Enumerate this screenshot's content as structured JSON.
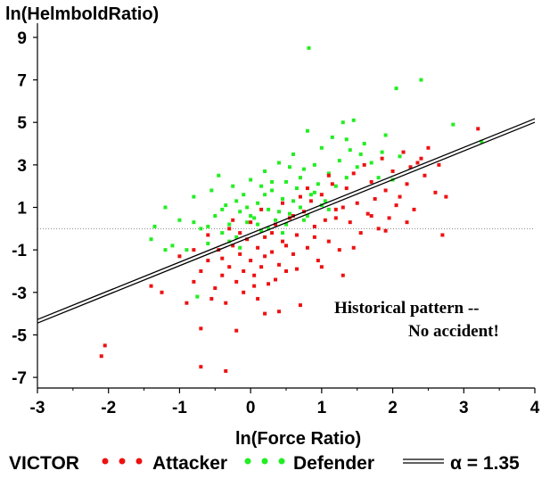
{
  "chart_data": {
    "type": "scatter",
    "title": "",
    "xlabel": "ln(Force Ratio)",
    "ylabel": "ln(HelmboldRatio)",
    "xlim": [
      -3,
      4
    ],
    "ylim": [
      -7.5,
      9.5
    ],
    "x_ticks": [
      "-3",
      "-2",
      "-1",
      "0",
      "1",
      "2",
      "3",
      "4"
    ],
    "y_ticks": [
      "9",
      "7",
      "5",
      "3",
      "1",
      "-1",
      "-3",
      "-5",
      "-7"
    ],
    "reference_line_y": 0,
    "annotation": [
      "Historical pattern --",
      "No accident!"
    ],
    "legend": {
      "title": "VICTOR",
      "attacker_label": "Attacker",
      "defender_label": "Defender",
      "line_label": "α = 1.35",
      "position": "bottom"
    },
    "colors": {
      "attacker": "#ee1111",
      "defender": "#22ee22",
      "line": "#000000",
      "reference": "#888888"
    },
    "fit_line": {
      "slope": 1.35,
      "intercept": -0.31
    },
    "series": [
      {
        "name": "Attacker",
        "points": [
          [
            -2.1,
            -6.0
          ],
          [
            -2.05,
            -5.5
          ],
          [
            -1.4,
            -2.7
          ],
          [
            -1.25,
            -3.0
          ],
          [
            -0.7,
            -6.5
          ],
          [
            -0.35,
            -6.7
          ],
          [
            -0.7,
            -4.7
          ],
          [
            -0.9,
            -3.5
          ],
          [
            -0.8,
            -2.5
          ],
          [
            -0.7,
            -2.0
          ],
          [
            -0.6,
            -1.5
          ],
          [
            -0.55,
            -3.3
          ],
          [
            -0.5,
            -2.8
          ],
          [
            -0.45,
            -1.0
          ],
          [
            -0.4,
            -2.2
          ],
          [
            -0.35,
            -3.5
          ],
          [
            -0.3,
            -1.8
          ],
          [
            -0.25,
            -0.8
          ],
          [
            -0.2,
            -2.5
          ],
          [
            -0.15,
            -1.2
          ],
          [
            -0.1,
            -3.0
          ],
          [
            -0.05,
            -0.5
          ],
          [
            0.0,
            -1.5
          ],
          [
            0.05,
            -2.2
          ],
          [
            0.1,
            -0.9
          ],
          [
            0.1,
            -3.3
          ],
          [
            0.15,
            -1.8
          ],
          [
            0.2,
            -0.4
          ],
          [
            0.25,
            -2.6
          ],
          [
            0.3,
            -1.1
          ],
          [
            0.35,
            0.2
          ],
          [
            0.4,
            -1.7
          ],
          [
            0.45,
            -0.6
          ],
          [
            0.5,
            -2.0
          ],
          [
            0.55,
            0.5
          ],
          [
            0.6,
            -1.2
          ],
          [
            0.65,
            -0.3
          ],
          [
            0.7,
            -3.6
          ],
          [
            0.75,
            0.8
          ],
          [
            0.8,
            -0.9
          ],
          [
            0.85,
            1.3
          ],
          [
            0.9,
            0.1
          ],
          [
            0.95,
            -1.5
          ],
          [
            1.0,
            1.6
          ],
          [
            1.05,
            0.4
          ],
          [
            1.1,
            -0.6
          ],
          [
            1.15,
            2.1
          ],
          [
            1.2,
            0.9
          ],
          [
            1.25,
            -1.0
          ],
          [
            1.3,
            -2.2
          ],
          [
            1.35,
            1.9
          ],
          [
            1.4,
            0.3
          ],
          [
            1.45,
            2.6
          ],
          [
            1.5,
            1.2
          ],
          [
            1.55,
            -0.2
          ],
          [
            1.6,
            3.0
          ],
          [
            1.65,
            0.7
          ],
          [
            1.7,
            2.2
          ],
          [
            1.75,
            1.4
          ],
          [
            1.8,
            0.0
          ],
          [
            1.85,
            3.3
          ],
          [
            1.9,
            1.8
          ],
          [
            1.95,
            0.5
          ],
          [
            2.0,
            2.7
          ],
          [
            2.1,
            1.5
          ],
          [
            2.15,
            3.6
          ],
          [
            2.2,
            2.1
          ],
          [
            2.3,
            0.9
          ],
          [
            2.35,
            3.1
          ],
          [
            2.45,
            2.5
          ],
          [
            2.5,
            3.8
          ],
          [
            2.6,
            1.7
          ],
          [
            2.65,
            3.0
          ],
          [
            2.7,
            -0.3
          ],
          [
            2.75,
            1.5
          ],
          [
            3.2,
            4.7
          ],
          [
            0.2,
            -4.0
          ],
          [
            -0.2,
            -4.8
          ],
          [
            0.4,
            -3.9
          ],
          [
            -0.6,
            -0.3
          ],
          [
            -0.3,
            0.0
          ],
          [
            0.0,
            0.3
          ],
          [
            0.3,
            -0.2
          ],
          [
            0.6,
            0.6
          ],
          [
            0.9,
            -0.4
          ],
          [
            1.2,
            0.5
          ],
          [
            1.0,
            -1.8
          ],
          [
            0.5,
            -0.8
          ],
          [
            0.2,
            -1.3
          ],
          [
            -0.1,
            -2.0
          ],
          [
            -0.4,
            -1.4
          ],
          [
            -0.8,
            -1.0
          ],
          [
            -1.0,
            -1.3
          ],
          [
            0.8,
            1.9
          ],
          [
            1.3,
            1.0
          ],
          [
            1.7,
            0.6
          ],
          [
            2.05,
            1.1
          ],
          [
            2.25,
            2.9
          ],
          [
            2.4,
            3.3
          ],
          [
            0.15,
            0.9
          ],
          [
            0.45,
            1.2
          ],
          [
            0.7,
            1.5
          ],
          [
            -0.25,
            0.4
          ],
          [
            1.1,
            2.5
          ],
          [
            0.05,
            -2.7
          ],
          [
            0.35,
            -2.4
          ],
          [
            -0.15,
            -0.2
          ],
          [
            0.65,
            -1.9
          ],
          [
            1.45,
            -0.9
          ],
          [
            1.9,
            -0.1
          ],
          [
            2.2,
            0.3
          ]
        ]
      },
      {
        "name": "Defender",
        "points": [
          [
            -1.4,
            -0.5
          ],
          [
            -1.35,
            0.1
          ],
          [
            -1.2,
            1.0
          ],
          [
            -1.1,
            -0.8
          ],
          [
            -1.0,
            0.4
          ],
          [
            -0.9,
            -1.0
          ],
          [
            -0.8,
            1.5
          ],
          [
            -0.75,
            -3.2
          ],
          [
            -0.7,
            0.0
          ],
          [
            -0.6,
            -0.7
          ],
          [
            -0.55,
            1.8
          ],
          [
            -0.5,
            0.6
          ],
          [
            -0.45,
            2.5
          ],
          [
            -0.4,
            -0.2
          ],
          [
            -0.35,
            1.1
          ],
          [
            -0.3,
            0.2
          ],
          [
            -0.25,
            2.0
          ],
          [
            -0.2,
            -0.4
          ],
          [
            -0.15,
            0.8
          ],
          [
            -0.1,
            1.6
          ],
          [
            -0.05,
            0.3
          ],
          [
            0.0,
            2.3
          ],
          [
            0.05,
            0.5
          ],
          [
            0.1,
            1.2
          ],
          [
            0.15,
            -0.1
          ],
          [
            0.2,
            2.7
          ],
          [
            0.25,
            0.9
          ],
          [
            0.3,
            1.8
          ],
          [
            0.35,
            0.4
          ],
          [
            0.4,
            3.1
          ],
          [
            0.45,
            1.4
          ],
          [
            0.5,
            2.2
          ],
          [
            0.55,
            0.7
          ],
          [
            0.6,
            3.5
          ],
          [
            0.65,
            1.9
          ],
          [
            0.7,
            1.0
          ],
          [
            0.75,
            2.8
          ],
          [
            0.8,
            4.6
          ],
          [
            0.82,
            8.5
          ],
          [
            0.85,
            1.6
          ],
          [
            0.9,
            3.0
          ],
          [
            0.95,
            2.1
          ],
          [
            1.0,
            3.8
          ],
          [
            1.05,
            1.3
          ],
          [
            1.1,
            2.6
          ],
          [
            1.15,
            4.3
          ],
          [
            1.2,
            2.0
          ],
          [
            1.25,
            3.2
          ],
          [
            1.3,
            5.0
          ],
          [
            1.35,
            2.4
          ],
          [
            1.4,
            3.7
          ],
          [
            1.45,
            5.1
          ],
          [
            1.5,
            2.9
          ],
          [
            1.6,
            4.0
          ],
          [
            1.7,
            3.1
          ],
          [
            1.8,
            2.4
          ],
          [
            1.9,
            4.4
          ],
          [
            2.0,
            2.3
          ],
          [
            2.05,
            6.6
          ],
          [
            2.1,
            3.4
          ],
          [
            2.4,
            7.0
          ],
          [
            2.85,
            4.9
          ],
          [
            3.25,
            4.1
          ],
          [
            -0.6,
            0.1
          ],
          [
            -0.4,
            0.9
          ],
          [
            -0.2,
            1.3
          ],
          [
            0.0,
            0.6
          ],
          [
            0.2,
            1.6
          ],
          [
            0.4,
            0.8
          ],
          [
            0.6,
            1.3
          ],
          [
            0.8,
            0.6
          ],
          [
            1.0,
            1.1
          ],
          [
            -0.05,
            1.0
          ],
          [
            0.1,
            0.2
          ],
          [
            0.3,
            2.2
          ],
          [
            0.5,
            0.2
          ],
          [
            0.7,
            2.4
          ],
          [
            0.9,
            1.7
          ],
          [
            1.1,
            0.9
          ],
          [
            0.15,
            2.0
          ],
          [
            -0.3,
            -0.6
          ],
          [
            -0.8,
            0.3
          ],
          [
            -1.2,
            -1.0
          ],
          [
            0.55,
            2.9
          ],
          [
            1.35,
            4.2
          ],
          [
            0.25,
            0.0
          ],
          [
            -0.15,
            -0.9
          ],
          [
            0.45,
            -0.2
          ],
          [
            0.75,
            0.4
          ],
          [
            1.55,
            3.5
          ],
          [
            1.85,
            3.6
          ]
        ]
      }
    ]
  }
}
